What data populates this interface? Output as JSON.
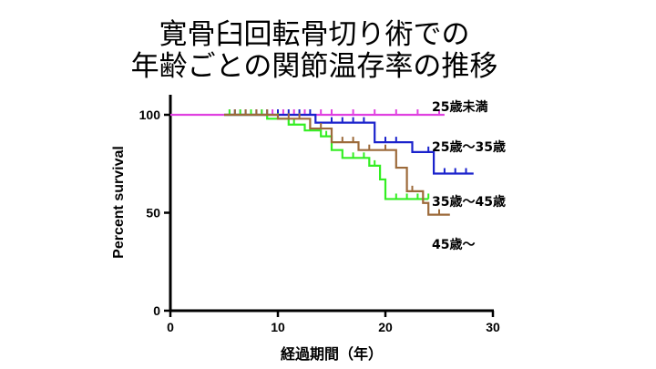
{
  "title_lines": [
    "寛骨臼回転骨切り術での",
    "年齢ごとの関節温存率の推移"
  ],
  "chart_data": {
    "type": "line",
    "subtype": "kaplan-meier step",
    "xlabel": "経過期間（年）",
    "ylabel": "Percent survival",
    "xlim": [
      0,
      30
    ],
    "ylim": [
      0,
      100
    ],
    "x_ticks": [
      0,
      10,
      20,
      30
    ],
    "y_ticks": [
      0,
      50,
      100
    ],
    "grid": false,
    "legend": "labels placed beside curves",
    "series": [
      {
        "name": "25歳未満",
        "color": "#e040e0",
        "steps": [
          [
            0,
            100
          ],
          [
            25.5,
            100
          ]
        ],
        "censor": [
          5.5,
          6.5,
          7.5,
          8.5,
          9.5,
          10.5,
          11.5,
          12.5,
          14,
          15,
          17,
          19,
          21,
          23,
          25
        ]
      },
      {
        "name": "25歳〜35歳",
        "color": "#1a22cc",
        "steps": [
          [
            5,
            100
          ],
          [
            13.5,
            100
          ],
          [
            13.5,
            96
          ],
          [
            19,
            96
          ],
          [
            19,
            86
          ],
          [
            22.5,
            86
          ],
          [
            22.5,
            81
          ],
          [
            24.5,
            81
          ],
          [
            24.5,
            70
          ],
          [
            28.2,
            70
          ]
        ],
        "censor": [
          6,
          7,
          8,
          9,
          10,
          11,
          12,
          13,
          15,
          16,
          17,
          18,
          20,
          21,
          24,
          25.5,
          26.5,
          27.5
        ]
      },
      {
        "name": "35歳〜45歳",
        "color": "#33ee22",
        "steps": [
          [
            5,
            100
          ],
          [
            9,
            100
          ],
          [
            9,
            98
          ],
          [
            11,
            98
          ],
          [
            11,
            95
          ],
          [
            12.5,
            95
          ],
          [
            12.5,
            92
          ],
          [
            14,
            92
          ],
          [
            14,
            89
          ],
          [
            15,
            89
          ],
          [
            15,
            82
          ],
          [
            16,
            82
          ],
          [
            16,
            78
          ],
          [
            18.5,
            78
          ],
          [
            18.5,
            74
          ],
          [
            19.5,
            74
          ],
          [
            19.5,
            67
          ],
          [
            20,
            67
          ],
          [
            20,
            57
          ],
          [
            24,
            57
          ]
        ],
        "censor": [
          5.5,
          6.5,
          7.5,
          8.5,
          10,
          11.5,
          13,
          14.5,
          17,
          18,
          19,
          21,
          22,
          23,
          24
        ]
      },
      {
        "name": "45歳〜",
        "color": "#9c6a3a",
        "steps": [
          [
            5,
            100
          ],
          [
            10,
            100
          ],
          [
            10,
            98
          ],
          [
            13,
            98
          ],
          [
            13,
            93
          ],
          [
            15,
            93
          ],
          [
            15,
            86
          ],
          [
            17.5,
            86
          ],
          [
            17.5,
            82
          ],
          [
            21,
            82
          ],
          [
            21,
            73
          ],
          [
            22,
            73
          ],
          [
            22,
            61
          ],
          [
            23.5,
            61
          ],
          [
            23.5,
            55
          ],
          [
            24,
            55
          ],
          [
            24,
            49
          ],
          [
            26,
            49
          ]
        ],
        "censor": [
          6,
          7,
          8,
          9,
          11,
          12,
          14,
          16,
          17,
          18.5,
          20,
          22.5,
          25
        ]
      }
    ]
  }
}
